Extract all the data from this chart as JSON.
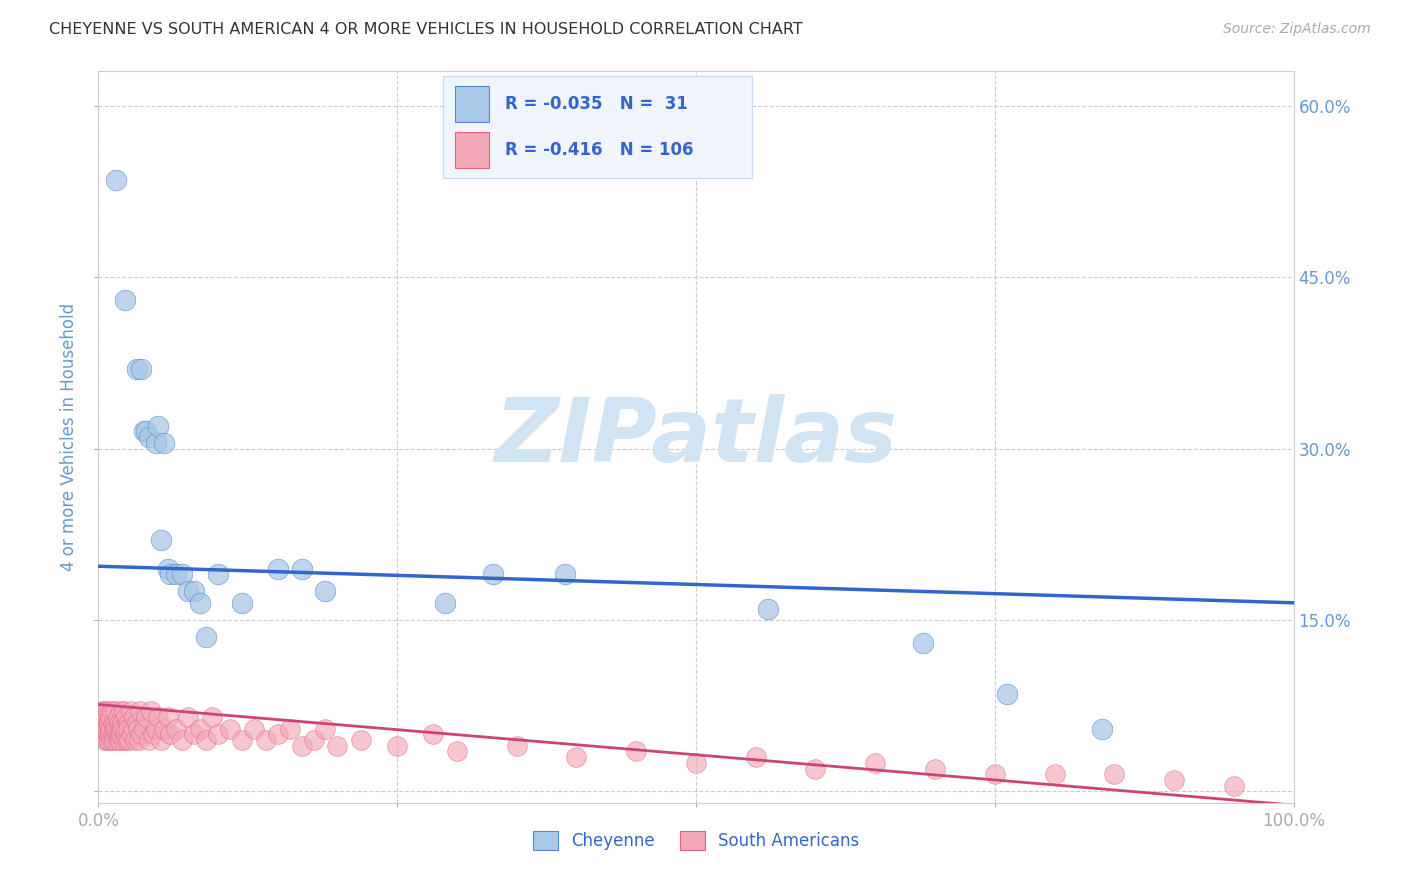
{
  "title": "CHEYENNE VS SOUTH AMERICAN 4 OR MORE VEHICLES IN HOUSEHOLD CORRELATION CHART",
  "source": "Source: ZipAtlas.com",
  "ylabel": "4 or more Vehicles in Household",
  "xlim": [
    0,
    1.0
  ],
  "ylim": [
    -0.01,
    0.63
  ],
  "yticks": [
    0.0,
    0.15,
    0.3,
    0.45,
    0.6
  ],
  "yticklabels_right": [
    "",
    "15.0%",
    "30.0%",
    "45.0%",
    "60.0%"
  ],
  "xticks": [
    0.0,
    0.25,
    0.5,
    0.75,
    1.0
  ],
  "xticklabels": [
    "0.0%",
    "",
    "",
    "",
    "100.0%"
  ],
  "cheyenne_R": -0.035,
  "cheyenne_N": 31,
  "south_american_R": -0.416,
  "south_american_N": 106,
  "cheyenne_color": "#a8c8e8",
  "south_american_color": "#f4a8b8",
  "cheyenne_edge_color": "#5588cc",
  "south_american_edge_color": "#e06080",
  "cheyenne_line_color": "#3366cc",
  "south_american_line_color": "#cc4477",
  "watermark_color": "#d0e4f4",
  "grid_color": "#cccccc",
  "title_color": "#333333",
  "axis_label_color": "#6699cc",
  "tick_color": "#6699cc",
  "bg_color": "#ffffff",
  "cheyenne_x": [
    0.015,
    0.022,
    0.032,
    0.036,
    0.038,
    0.04,
    0.042,
    0.048,
    0.05,
    0.052,
    0.055,
    0.058,
    0.06,
    0.065,
    0.07,
    0.075,
    0.08,
    0.085,
    0.09,
    0.1,
    0.12,
    0.15,
    0.17,
    0.19,
    0.29,
    0.33,
    0.39,
    0.56,
    0.69,
    0.76,
    0.84
  ],
  "cheyenne_y": [
    0.535,
    0.43,
    0.37,
    0.37,
    0.315,
    0.315,
    0.31,
    0.305,
    0.32,
    0.22,
    0.305,
    0.195,
    0.19,
    0.19,
    0.19,
    0.175,
    0.175,
    0.165,
    0.135,
    0.19,
    0.165,
    0.195,
    0.195,
    0.175,
    0.165,
    0.19,
    0.19,
    0.16,
    0.13,
    0.085,
    0.055
  ],
  "sa_cluster_x": [
    0.002,
    0.003,
    0.003,
    0.004,
    0.004,
    0.005,
    0.005,
    0.005,
    0.006,
    0.006,
    0.007,
    0.007,
    0.007,
    0.008,
    0.008,
    0.008,
    0.009,
    0.009,
    0.01,
    0.01,
    0.01,
    0.011,
    0.011,
    0.012,
    0.012,
    0.013,
    0.013,
    0.014,
    0.014,
    0.015,
    0.015,
    0.016,
    0.016,
    0.017,
    0.017,
    0.018,
    0.018,
    0.019,
    0.019,
    0.02,
    0.02,
    0.021,
    0.021,
    0.022,
    0.022,
    0.023,
    0.024,
    0.025,
    0.025,
    0.026,
    0.027,
    0.028,
    0.029,
    0.03,
    0.031,
    0.032,
    0.033,
    0.034,
    0.035,
    0.036,
    0.038,
    0.04,
    0.042,
    0.044,
    0.046,
    0.048,
    0.05,
    0.052,
    0.055,
    0.058,
    0.06,
    0.065,
    0.07,
    0.075,
    0.08,
    0.085,
    0.09,
    0.095,
    0.1,
    0.11,
    0.12,
    0.13,
    0.14,
    0.15,
    0.16,
    0.17,
    0.18,
    0.19,
    0.2,
    0.22,
    0.25,
    0.28,
    0.3,
    0.35,
    0.4,
    0.45,
    0.5,
    0.55,
    0.6,
    0.65,
    0.7,
    0.75,
    0.8,
    0.85,
    0.9,
    0.95
  ],
  "sa_cluster_y": [
    0.06,
    0.055,
    0.07,
    0.05,
    0.065,
    0.045,
    0.06,
    0.07,
    0.05,
    0.065,
    0.055,
    0.045,
    0.065,
    0.05,
    0.06,
    0.07,
    0.045,
    0.06,
    0.05,
    0.065,
    0.055,
    0.045,
    0.07,
    0.05,
    0.06,
    0.055,
    0.045,
    0.06,
    0.07,
    0.05,
    0.055,
    0.045,
    0.065,
    0.05,
    0.06,
    0.055,
    0.045,
    0.07,
    0.05,
    0.06,
    0.055,
    0.045,
    0.07,
    0.05,
    0.055,
    0.065,
    0.045,
    0.06,
    0.055,
    0.045,
    0.07,
    0.05,
    0.055,
    0.065,
    0.045,
    0.06,
    0.055,
    0.045,
    0.07,
    0.05,
    0.055,
    0.065,
    0.045,
    0.07,
    0.05,
    0.055,
    0.065,
    0.045,
    0.055,
    0.065,
    0.05,
    0.055,
    0.045,
    0.065,
    0.05,
    0.055,
    0.045,
    0.065,
    0.05,
    0.055,
    0.045,
    0.055,
    0.045,
    0.05,
    0.055,
    0.04,
    0.045,
    0.055,
    0.04,
    0.045,
    0.04,
    0.05,
    0.035,
    0.04,
    0.03,
    0.035,
    0.025,
    0.03,
    0.02,
    0.025,
    0.02,
    0.015,
    0.015,
    0.015,
    0.01,
    0.005
  ],
  "cheyenne_trend_x0": 0.0,
  "cheyenne_trend_x1": 1.0,
  "cheyenne_trend_y0": 0.197,
  "cheyenne_trend_y1": 0.165,
  "sa_trend_x0": 0.0,
  "sa_trend_x1": 1.0,
  "sa_trend_y0": 0.076,
  "sa_trend_y1": -0.012,
  "legend_R1": "R = -0.035",
  "legend_N1": "N =  31",
  "legend_R2": "R = -0.416",
  "legend_N2": "N = 106",
  "bottom_legend_cheyenne": "Cheyenne",
  "bottom_legend_sa": "South Americans",
  "source_text": "Source: ZipAtlas.com",
  "watermark": "ZIPatlas"
}
